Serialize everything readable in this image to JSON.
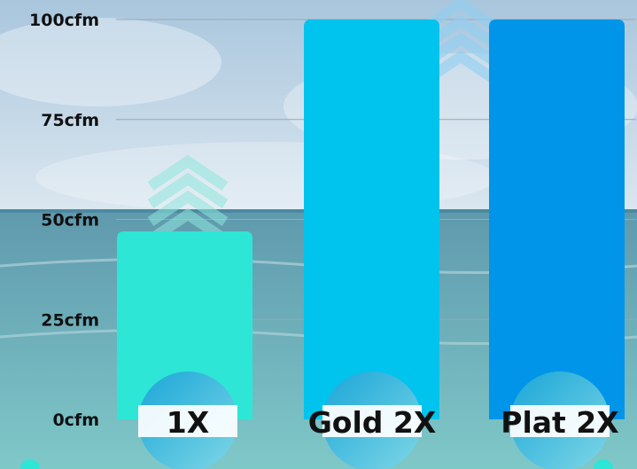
{
  "chart_data": {
    "type": "bar",
    "categories": [
      "1X",
      "Gold 2X",
      "Plat 2X"
    ],
    "values": [
      47,
      100,
      100
    ],
    "bar_colors": [
      "#2ee6d6",
      "#00c3ee",
      "#0095e8"
    ],
    "ylim": [
      0,
      100
    ],
    "y_ticks": [
      0,
      25,
      50,
      75,
      100
    ],
    "y_tick_labels": [
      "0cfm",
      "25cfm",
      "50cfm",
      "75cfm",
      "100cfm"
    ],
    "grid": true,
    "increase_arrow_icons": [
      "chevron-up-icon",
      "chevron-up-icon",
      "chevron-up-icon"
    ]
  },
  "colors": {
    "sky_top": "#a9c6dd",
    "sky_bottom": "#dbe7f0",
    "sea_top": "#5f99ad",
    "sea_bottom": "#7fc8c8",
    "grid_line": "#9aa7b3",
    "tick_label": "#111111",
    "badge_ring": "#ffffff",
    "badge_grad_a": "#1aa6d8",
    "badge_grad_b": "#7fd7e6"
  }
}
